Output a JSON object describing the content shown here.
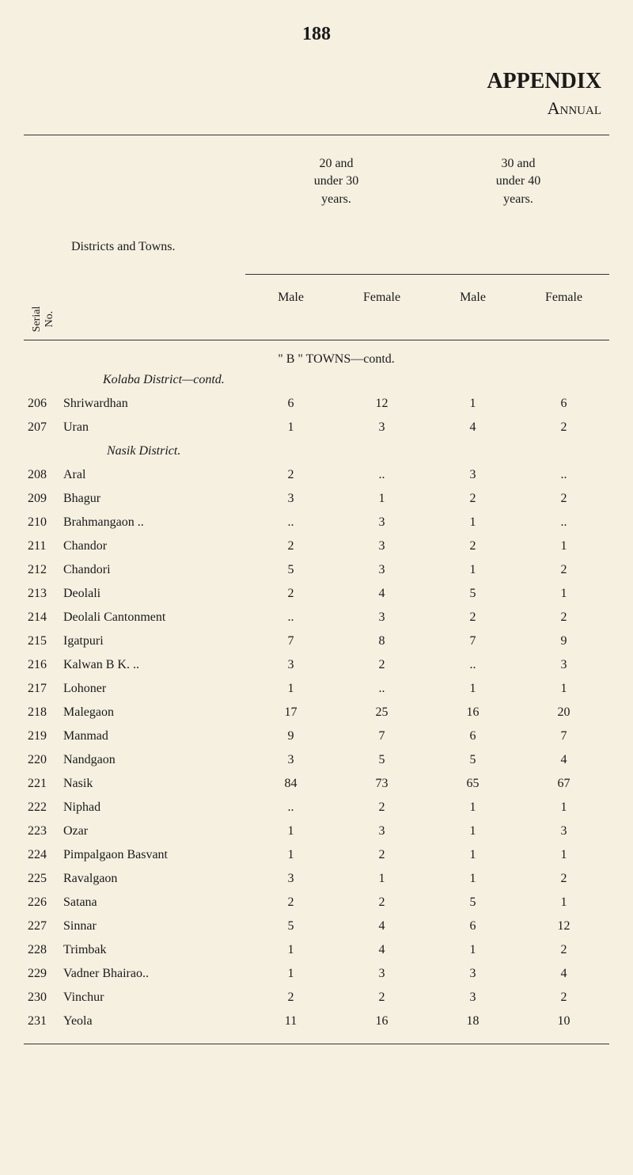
{
  "page_number": "188",
  "appendix_label": "APPENDIX",
  "annual_label": "Annual",
  "header_col1": [
    "20 and",
    "under 30",
    "years."
  ],
  "header_col2": [
    "30 and",
    "under 40",
    "years."
  ],
  "districts_label": "Districts and Towns.",
  "serial_label": "Serial No.",
  "subheaders": [
    "Male",
    "Female",
    "Male",
    "Female"
  ],
  "section_b_title": "\" B \" TOWNS—contd.",
  "kolaba_subtitle": "Kolaba District—contd.",
  "nasik_subtitle": "Nasik District.",
  "rows": [
    {
      "serial": "206",
      "name": "Shriwardhan",
      "v1": "6",
      "v2": "12",
      "v3": "1",
      "v4": "6"
    },
    {
      "serial": "207",
      "name": "Uran",
      "v1": "1",
      "v2": "3",
      "v3": "4",
      "v4": "2"
    },
    {
      "serial": "",
      "name": "",
      "district": true,
      "district_name": "Nasik District.",
      "v1": "",
      "v2": "",
      "v3": "",
      "v4": ""
    },
    {
      "serial": "208",
      "name": "Aral",
      "v1": "2",
      "v2": "..",
      "v3": "3",
      "v4": ".."
    },
    {
      "serial": "209",
      "name": "Bhagur",
      "v1": "3",
      "v2": "1",
      "v3": "2",
      "v4": "2"
    },
    {
      "serial": "210",
      "name": "Brahmangaon ..",
      "v1": "..",
      "v2": "3",
      "v3": "1",
      "v4": ".."
    },
    {
      "serial": "211",
      "name": "Chandor",
      "v1": "2",
      "v2": "3",
      "v3": "2",
      "v4": "1"
    },
    {
      "serial": "212",
      "name": "Chandori",
      "v1": "5",
      "v2": "3",
      "v3": "1",
      "v4": "2"
    },
    {
      "serial": "213",
      "name": "Deolali",
      "v1": "2",
      "v2": "4",
      "v3": "5",
      "v4": "1"
    },
    {
      "serial": "214",
      "name": "Deolali Cantonment",
      "v1": "..",
      "v2": "3",
      "v3": "2",
      "v4": "2"
    },
    {
      "serial": "215",
      "name": "Igatpuri",
      "v1": "7",
      "v2": "8",
      "v3": "7",
      "v4": "9"
    },
    {
      "serial": "216",
      "name": "Kalwan B K. ..",
      "v1": "3",
      "v2": "2",
      "v3": "..",
      "v4": "3"
    },
    {
      "serial": "217",
      "name": "Lohoner",
      "v1": "1",
      "v2": "..",
      "v3": "1",
      "v4": "1"
    },
    {
      "serial": "218",
      "name": "Malegaon",
      "v1": "17",
      "v2": "25",
      "v3": "16",
      "v4": "20"
    },
    {
      "serial": "219",
      "name": "Manmad",
      "v1": "9",
      "v2": "7",
      "v3": "6",
      "v4": "7"
    },
    {
      "serial": "220",
      "name": "Nandgaon",
      "v1": "3",
      "v2": "5",
      "v3": "5",
      "v4": "4"
    },
    {
      "serial": "221",
      "name": "Nasik",
      "v1": "84",
      "v2": "73",
      "v3": "65",
      "v4": "67"
    },
    {
      "serial": "222",
      "name": "Niphad",
      "v1": "..",
      "v2": "2",
      "v3": "1",
      "v4": "1"
    },
    {
      "serial": "223",
      "name": "Ozar",
      "v1": "1",
      "v2": "3",
      "v3": "1",
      "v4": "3"
    },
    {
      "serial": "224",
      "name": "Pimpalgaon Basvant",
      "v1": "1",
      "v2": "2",
      "v3": "1",
      "v4": "1"
    },
    {
      "serial": "225",
      "name": "Ravalgaon",
      "v1": "3",
      "v2": "1",
      "v3": "1",
      "v4": "2"
    },
    {
      "serial": "226",
      "name": "Satana",
      "v1": "2",
      "v2": "2",
      "v3": "5",
      "v4": "1"
    },
    {
      "serial": "227",
      "name": "Sinnar",
      "v1": "5",
      "v2": "4",
      "v3": "6",
      "v4": "12"
    },
    {
      "serial": "228",
      "name": "Trimbak",
      "v1": "1",
      "v2": "4",
      "v3": "1",
      "v4": "2"
    },
    {
      "serial": "229",
      "name": "Vadner Bhairao..",
      "v1": "1",
      "v2": "3",
      "v3": "3",
      "v4": "4"
    },
    {
      "serial": "230",
      "name": "Vinchur",
      "v1": "2",
      "v2": "2",
      "v3": "3",
      "v4": "2"
    },
    {
      "serial": "231",
      "name": "Yeola",
      "v1": "11",
      "v2": "16",
      "v3": "18",
      "v4": "10"
    }
  ]
}
